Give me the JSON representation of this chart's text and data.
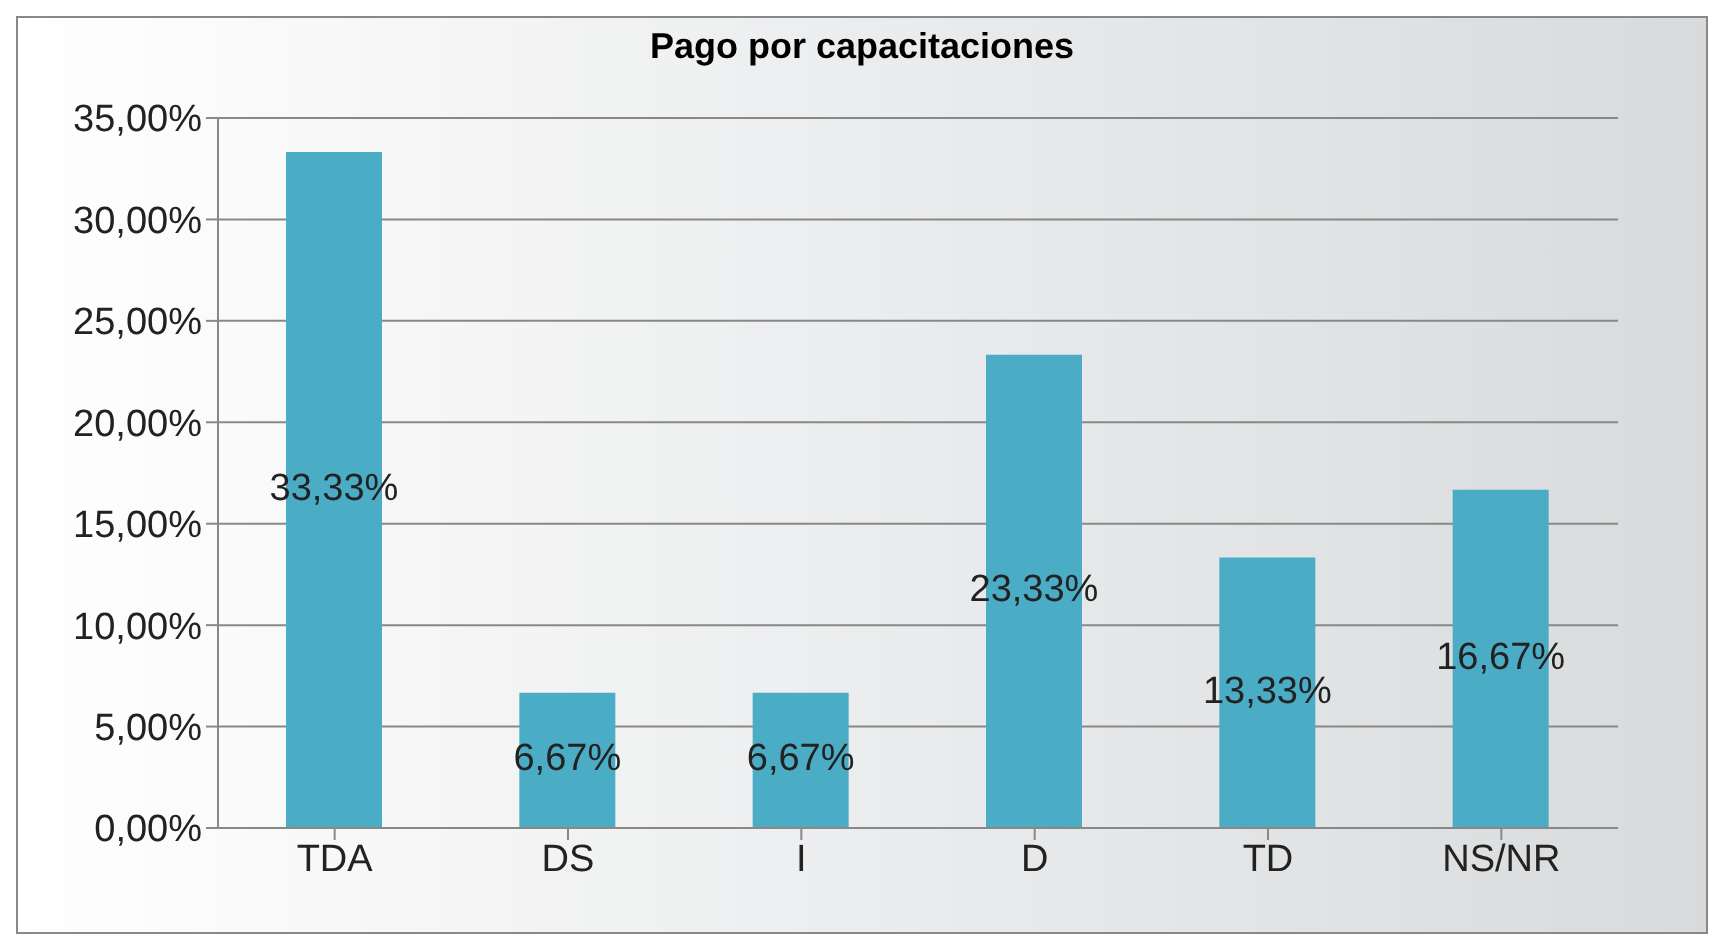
{
  "chart_data": {
    "type": "bar",
    "title": "Pago por capacitaciones",
    "categories": [
      "TDA",
      "DS",
      "I",
      "D",
      "TD",
      "NS/NR"
    ],
    "values": [
      33.33,
      6.67,
      6.67,
      23.33,
      13.33,
      16.67
    ],
    "value_labels": [
      "33,33%",
      "6,67%",
      "6,67%",
      "23,33%",
      "13,33%",
      "16,67%"
    ],
    "color": "#4bacc6",
    "ylim": [
      0,
      35
    ],
    "yticks": [
      {
        "value": 0,
        "label": "0,00%"
      },
      {
        "value": 5,
        "label": "5,00%"
      },
      {
        "value": 10,
        "label": "10,00%"
      },
      {
        "value": 15,
        "label": "15,00%"
      },
      {
        "value": 20,
        "label": "20,00%"
      },
      {
        "value": 25,
        "label": "25,00%"
      },
      {
        "value": 30,
        "label": "30,00%"
      },
      {
        "value": 35,
        "label": "35,00%"
      }
    ],
    "grid": "y"
  }
}
